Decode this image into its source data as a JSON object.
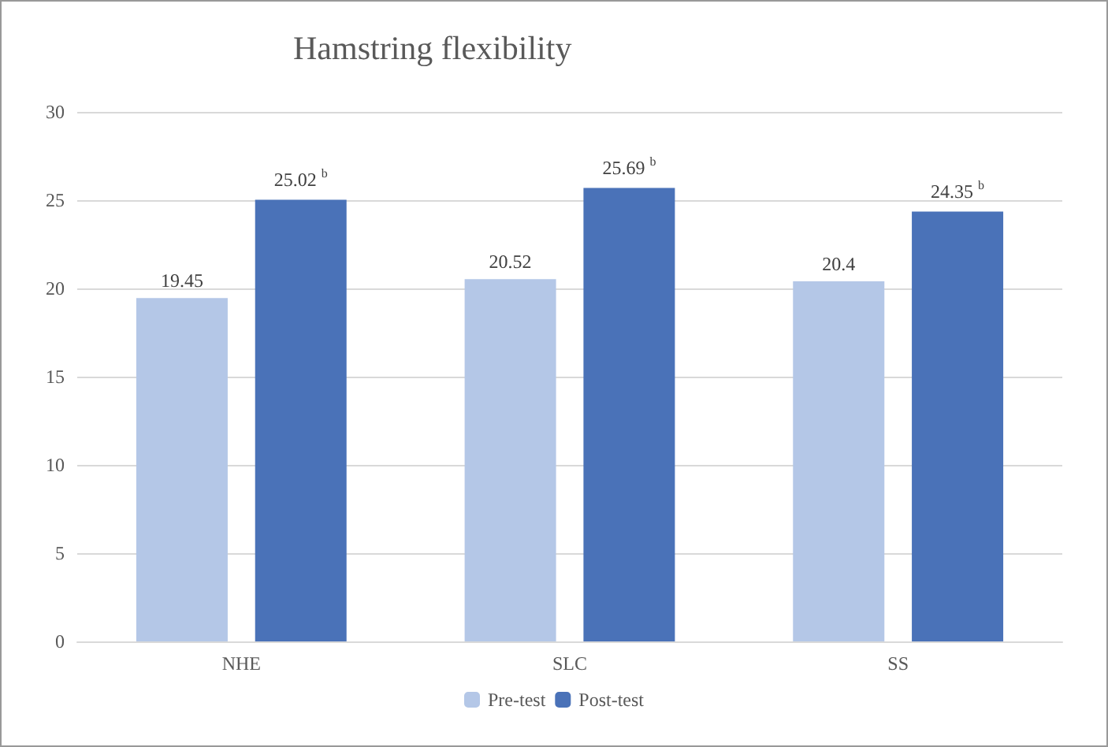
{
  "chart_data": {
    "type": "bar",
    "title": "Hamstring flexibility",
    "categories": [
      "NHE",
      "SLC",
      "SS"
    ],
    "series": [
      {
        "name": "Pre-test",
        "color": "#b4c7e7",
        "values": [
          19.45,
          20.52,
          20.4
        ],
        "value_labels": [
          "19.45",
          "20.52",
          "20.4"
        ]
      },
      {
        "name": "Post-test",
        "color": "#4a72b8",
        "values": [
          25.02,
          25.69,
          24.35
        ],
        "value_labels": [
          "25.02$^{b}$",
          "25.69$^{b}$",
          "24.35$^{b}$"
        ]
      }
    ],
    "ylim": [
      0,
      30
    ],
    "yticks": [
      0,
      5,
      10,
      15,
      20,
      25,
      30
    ],
    "grid": "y",
    "legend": "bottom"
  }
}
